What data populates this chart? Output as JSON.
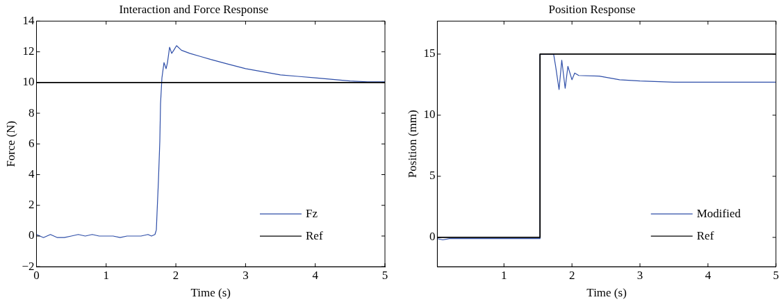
{
  "chart_data": [
    {
      "type": "line",
      "title": "Interaction and Force Response",
      "xlabel": "Time (s)",
      "ylabel": "Force (N)",
      "xlim": [
        0,
        5
      ],
      "xticks": [
        0,
        1,
        2,
        3,
        4,
        5
      ],
      "ylim": [
        -2,
        14
      ],
      "yticks": [
        {
          "value": -2,
          "label": "−2"
        },
        0,
        2,
        4,
        6,
        8,
        10,
        12,
        14
      ],
      "legend": "bottom right",
      "series": [
        {
          "name": "Fz",
          "color": "#2e4ea8",
          "x": [
            0,
            0.05,
            0.1,
            0.2,
            0.3,
            0.4,
            0.5,
            0.6,
            0.7,
            0.8,
            0.9,
            1.0,
            1.1,
            1.2,
            1.3,
            1.4,
            1.5,
            1.6,
            1.65,
            1.7,
            1.72,
            1.73,
            1.75,
            1.77,
            1.78,
            1.8,
            1.83,
            1.86,
            1.88,
            1.91,
            1.94,
            1.97,
            2.01,
            2.08,
            2.2,
            2.35,
            2.5,
            2.75,
            3.0,
            3.25,
            3.5,
            3.75,
            4.0,
            4.25,
            4.5,
            4.75,
            5.0
          ],
          "values": [
            0.1,
            0,
            -0.1,
            0.1,
            -0.1,
            -0.1,
            0,
            0.1,
            0,
            0.1,
            0,
            0,
            0,
            -0.1,
            0,
            0,
            0,
            0.1,
            0,
            0.1,
            0.4,
            1.5,
            3.6,
            6.2,
            8.6,
            10.3,
            11.3,
            10.9,
            11.3,
            12.3,
            11.9,
            12.1,
            12.4,
            12.1,
            11.9,
            11.7,
            11.5,
            11.2,
            10.9,
            10.7,
            10.5,
            10.4,
            10.3,
            10.2,
            10.1,
            10.05,
            10.05
          ]
        },
        {
          "name": "Ref",
          "color": "#000000",
          "x": [
            0,
            5
          ],
          "values": [
            10,
            10
          ]
        }
      ]
    },
    {
      "type": "line",
      "title": "Position Response",
      "xlabel": "Time (s)",
      "ylabel": "Position (mm)",
      "xlim": [
        0.02,
        5
      ],
      "xticks": [
        1,
        2,
        3,
        4,
        5
      ],
      "ylim": [
        -2.4,
        17.7
      ],
      "yticks": [
        0,
        5,
        10,
        15
      ],
      "legend": "bottom right",
      "series": [
        {
          "name": "Modified",
          "color": "#2e4ea8",
          "x": [
            0.02,
            0.1,
            0.2,
            1.53,
            1.53,
            1.73,
            1.76,
            1.81,
            1.85,
            1.9,
            1.94,
            2.0,
            2.04,
            2.1,
            2.4,
            2.7,
            3.0,
            3.5,
            4.0,
            4.5,
            5.0
          ],
          "values": [
            -0.1,
            -0.2,
            -0.1,
            -0.1,
            15,
            15,
            14,
            12.1,
            14.5,
            12.2,
            14,
            12.9,
            13.45,
            13.25,
            13.2,
            12.9,
            12.8,
            12.7,
            12.7,
            12.7,
            12.7
          ]
        },
        {
          "name": "Ref",
          "type": "step",
          "color": "#000000",
          "x": [
            0.02,
            1.53,
            5
          ],
          "values": [
            0,
            15,
            15
          ]
        }
      ]
    }
  ]
}
